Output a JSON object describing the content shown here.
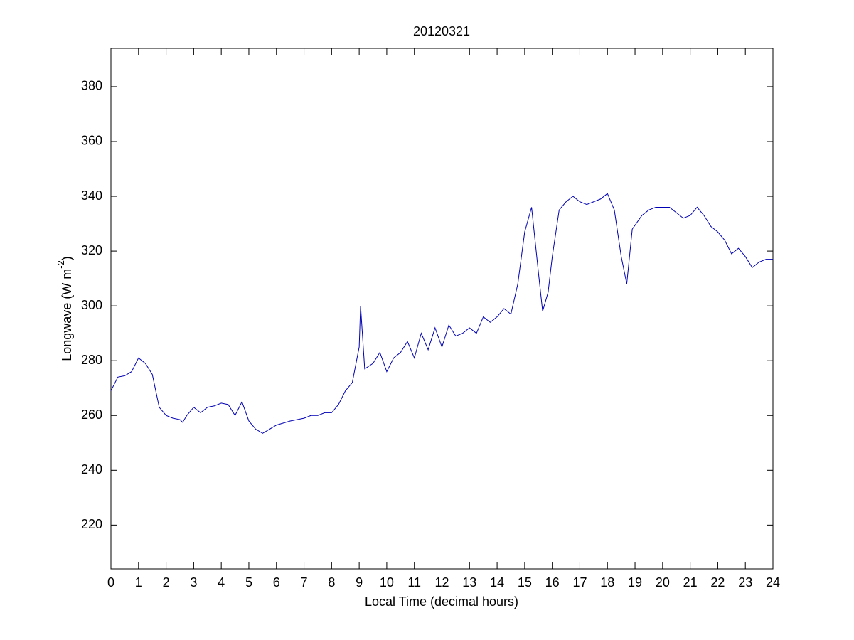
{
  "chart_data": {
    "type": "line",
    "title": "20120321",
    "xlabel": "Local Time (decimal hours)",
    "ylabel": [
      "Longwave (W m",
      "-2",
      ")"
    ],
    "x": [
      0,
      0.25,
      0.5,
      0.75,
      1,
      1.25,
      1.5,
      1.75,
      2,
      2.25,
      2.5,
      2.6,
      2.75,
      3,
      3.25,
      3.5,
      3.75,
      4,
      4.25,
      4.5,
      4.75,
      5,
      5.25,
      5.5,
      5.75,
      6,
      6.5,
      7,
      7.25,
      7.5,
      7.75,
      8,
      8.25,
      8.5,
      8.75,
      9,
      9.05,
      9.2,
      9.5,
      9.75,
      10,
      10.25,
      10.5,
      10.75,
      11,
      11.25,
      11.5,
      11.75,
      12,
      12.25,
      12.5,
      12.75,
      13,
      13.25,
      13.5,
      13.75,
      14,
      14.25,
      14.5,
      14.75,
      15,
      15.25,
      15.5,
      15.65,
      15.85,
      16,
      16.25,
      16.5,
      16.75,
      17,
      17.25,
      17.5,
      17.75,
      18,
      18.25,
      18.5,
      18.7,
      18.9,
      19.25,
      19.5,
      19.75,
      20,
      20.25,
      20.5,
      20.75,
      21,
      21.25,
      21.5,
      21.75,
      22,
      22.25,
      22.5,
      22.75,
      23,
      23.25,
      23.5,
      23.75,
      24
    ],
    "series": [
      {
        "name": "Longwave",
        "color": "#0000b4",
        "values": [
          269,
          274,
          274.5,
          276,
          281,
          279,
          275,
          263,
          260,
          259,
          258.5,
          257.5,
          260,
          263,
          261,
          263,
          263.5,
          264.5,
          264,
          260,
          265,
          258,
          255,
          253.5,
          255,
          256.5,
          258,
          259,
          260,
          260,
          261,
          261,
          264,
          269,
          272,
          285,
          300,
          277,
          279,
          283,
          276,
          281,
          283,
          287,
          281,
          290,
          284,
          292,
          285,
          293,
          289,
          290,
          292,
          290,
          296,
          294,
          296,
          299,
          297,
          308,
          327,
          336,
          312,
          298,
          305,
          318,
          335,
          338,
          340,
          338,
          337,
          338,
          339,
          341,
          335,
          318,
          308,
          328,
          333,
          335,
          336,
          336,
          336,
          334,
          332,
          333,
          336,
          333,
          329,
          327,
          324,
          319,
          321,
          318,
          314,
          316,
          317,
          317
        ]
      }
    ],
    "xlim": [
      0,
      24
    ],
    "ylim": [
      204,
      394
    ],
    "xticks": [
      0,
      1,
      2,
      3,
      4,
      5,
      6,
      7,
      8,
      9,
      10,
      11,
      12,
      13,
      14,
      15,
      16,
      17,
      18,
      19,
      20,
      21,
      22,
      23,
      24
    ],
    "yticks": [
      220,
      240,
      260,
      280,
      300,
      320,
      340,
      360,
      380
    ],
    "grid": false
  }
}
